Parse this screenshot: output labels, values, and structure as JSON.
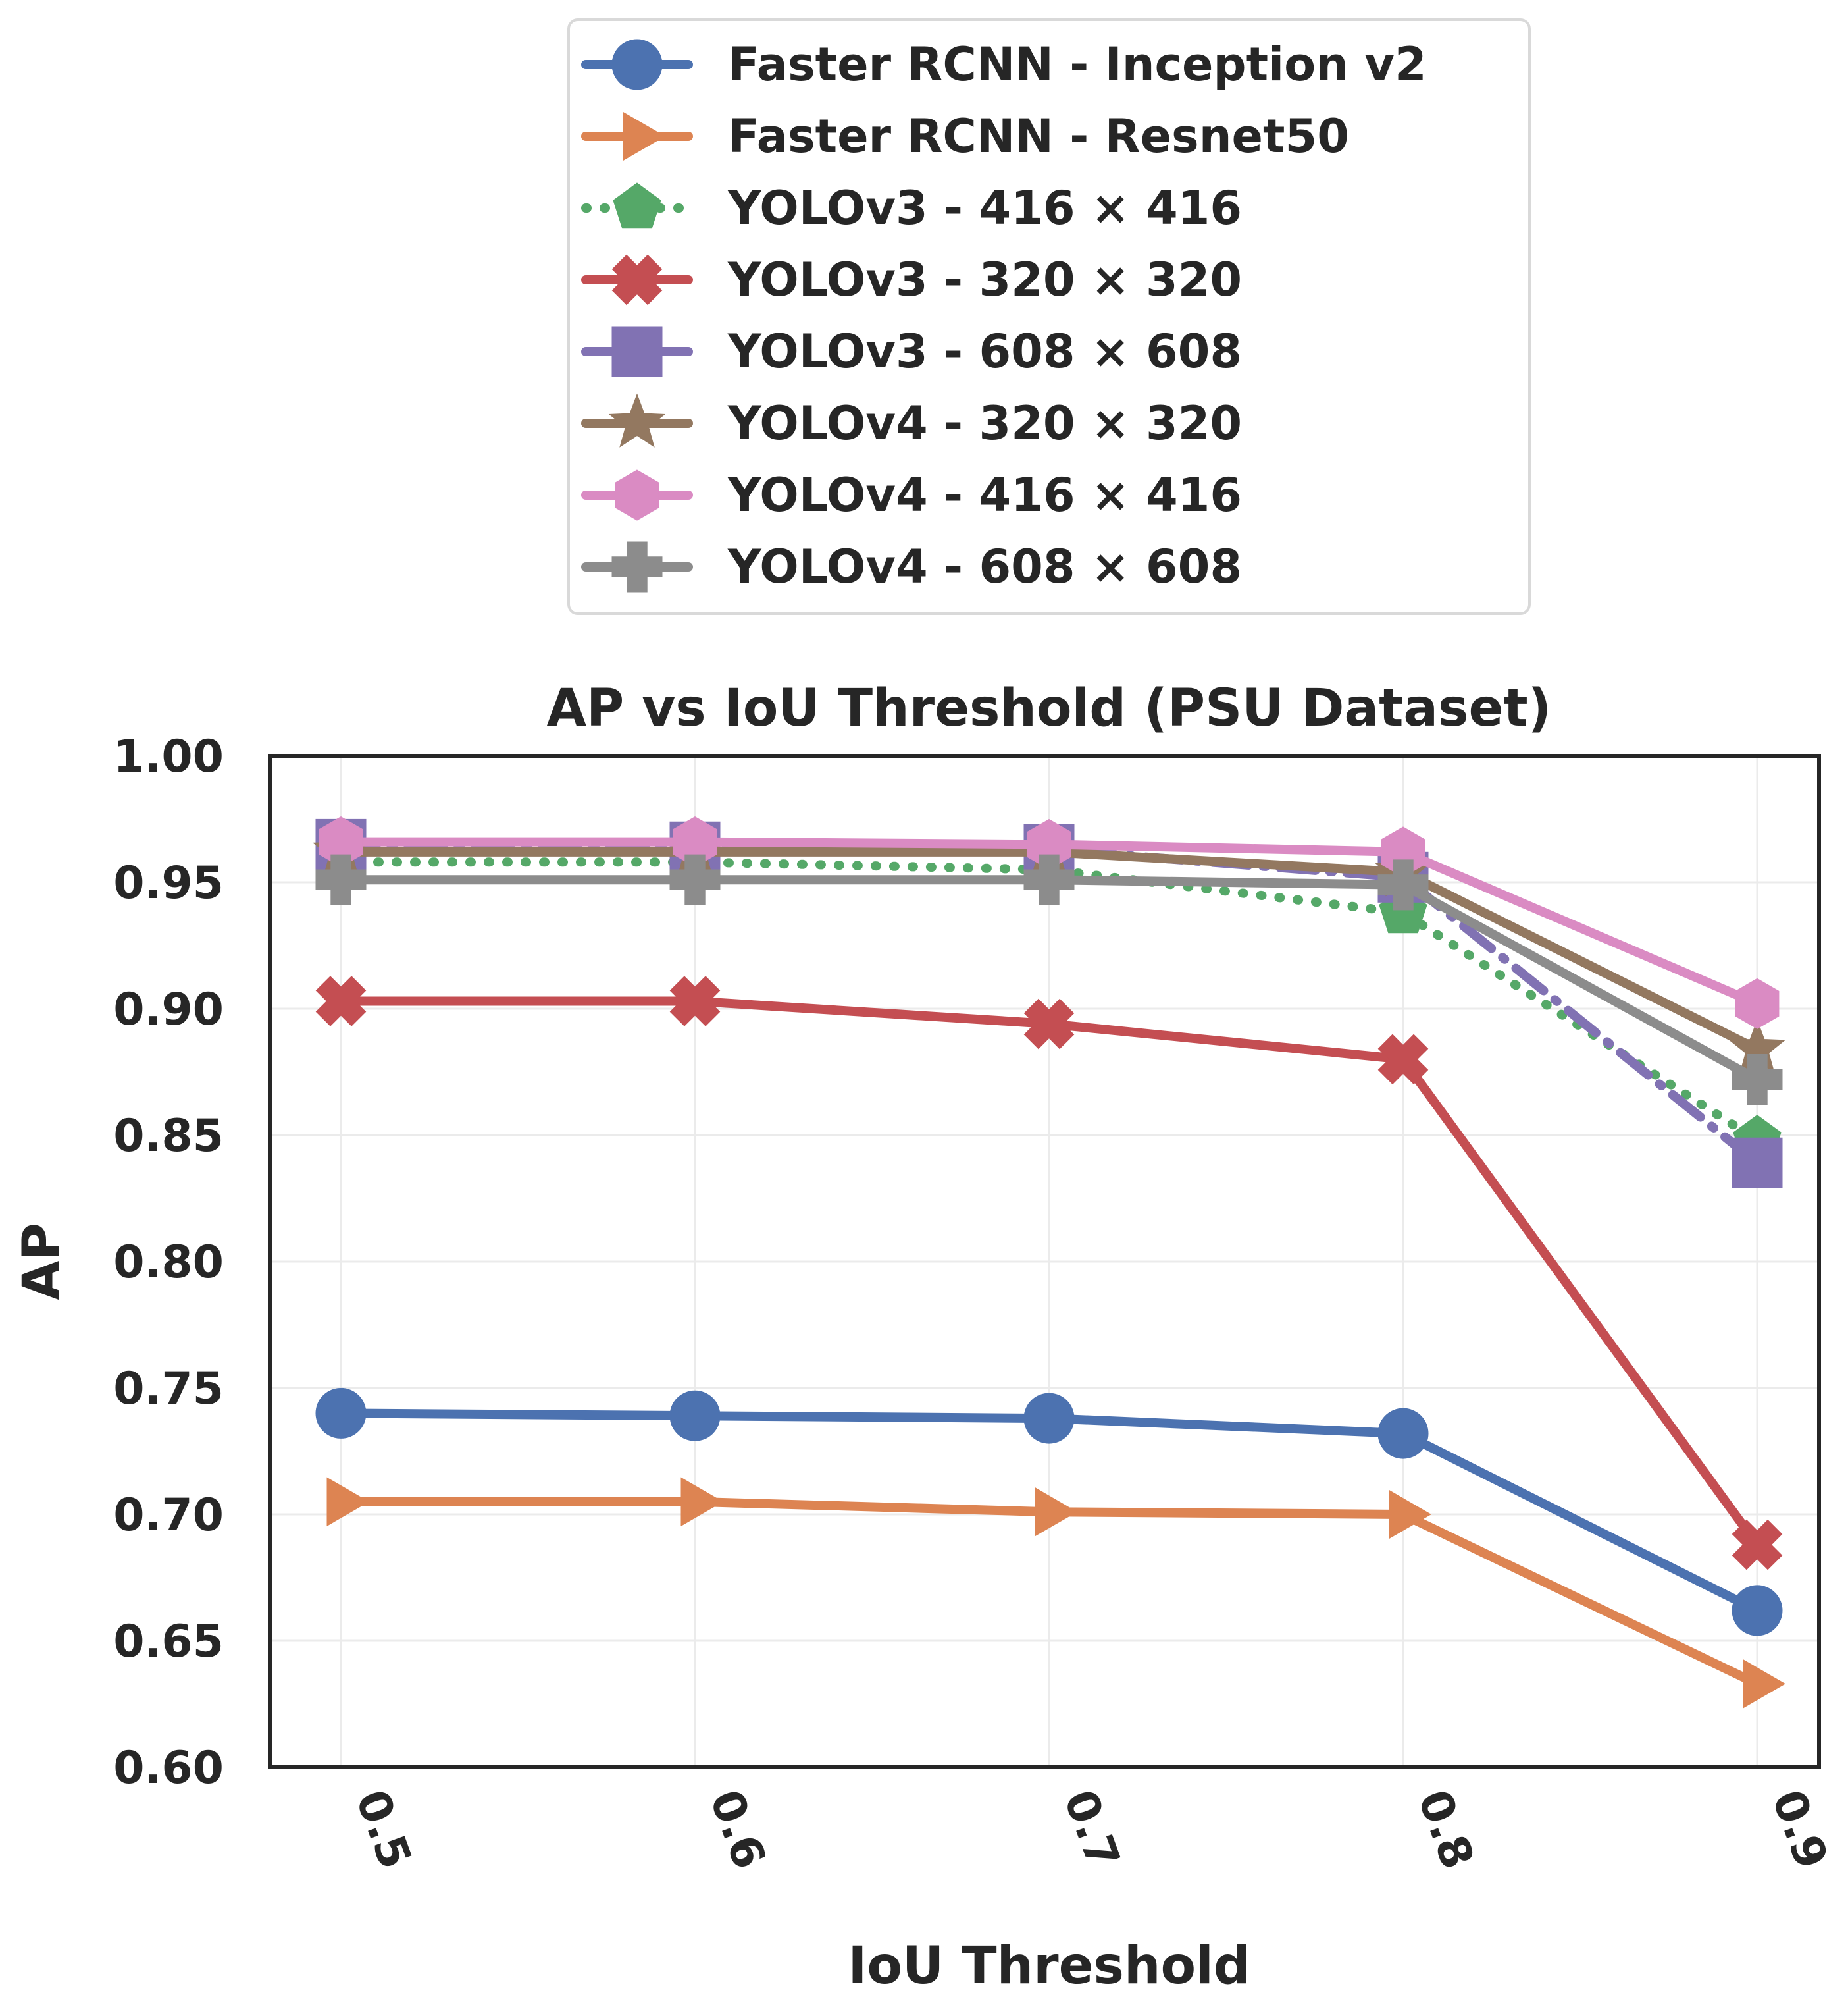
{
  "chart_data": {
    "type": "line",
    "title": "AP vs IoU Threshold (PSU Dataset)",
    "xlabel": "IoU Threshold",
    "ylabel": "AP",
    "x": [
      0.5,
      0.6,
      0.7,
      0.8,
      0.9
    ],
    "x_tick_labels": [
      "0.5",
      "0.6",
      "0.7",
      "0.8",
      "0.9"
    ],
    "ylim": [
      0.6,
      1.0
    ],
    "y_ticks": [
      0.6,
      0.65,
      0.7,
      0.75,
      0.8,
      0.85,
      0.9,
      0.95,
      1.0
    ],
    "y_tick_labels": [
      "0.60",
      "0.65",
      "0.70",
      "0.75",
      "0.80",
      "0.85",
      "0.90",
      "0.95",
      "1.00"
    ],
    "grid": true,
    "legend_position": "top-center, outside plot",
    "series": [
      {
        "name": "Faster RCNN - Inception v2",
        "color": "#4c72b0",
        "marker": "circle",
        "linestyle": "solid",
        "values": [
          0.74,
          0.739,
          0.738,
          0.732,
          0.662
        ]
      },
      {
        "name": "Faster RCNN - Resnet50",
        "color": "#dd8452",
        "marker": "triangle-right",
        "linestyle": "solid",
        "values": [
          0.705,
          0.705,
          0.701,
          0.7,
          0.633
        ]
      },
      {
        "name": "YOLOv3 - 416 × 416",
        "color": "#55a868",
        "marker": "pentagon",
        "linestyle": "dotted",
        "values": [
          0.958,
          0.958,
          0.955,
          0.938,
          0.848
        ]
      },
      {
        "name": "YOLOv3 - 320 × 320",
        "color": "#c44e52",
        "marker": "x-filled",
        "linestyle": "solid",
        "values": [
          0.903,
          0.903,
          0.894,
          0.88,
          0.688
        ]
      },
      {
        "name": "YOLOv3 - 608 × 608",
        "color": "#8172b3",
        "marker": "square",
        "linestyle": "dashdot",
        "values": [
          0.965,
          0.964,
          0.963,
          0.952,
          0.839
        ]
      },
      {
        "name": "YOLOv4 - 320 × 320",
        "color": "#937860",
        "marker": "star",
        "linestyle": "solid",
        "values": [
          0.962,
          0.962,
          0.962,
          0.954,
          0.884
        ]
      },
      {
        "name": "YOLOv4 - 416 × 416",
        "color": "#da8bc3",
        "marker": "hexagon",
        "linestyle": "solid",
        "values": [
          0.966,
          0.966,
          0.965,
          0.962,
          0.902
        ]
      },
      {
        "name": "YOLOv4 - 608 × 608",
        "color": "#8c8c8c",
        "marker": "plus-filled",
        "linestyle": "solid",
        "values": [
          0.951,
          0.951,
          0.951,
          0.949,
          0.872
        ]
      }
    ]
  }
}
